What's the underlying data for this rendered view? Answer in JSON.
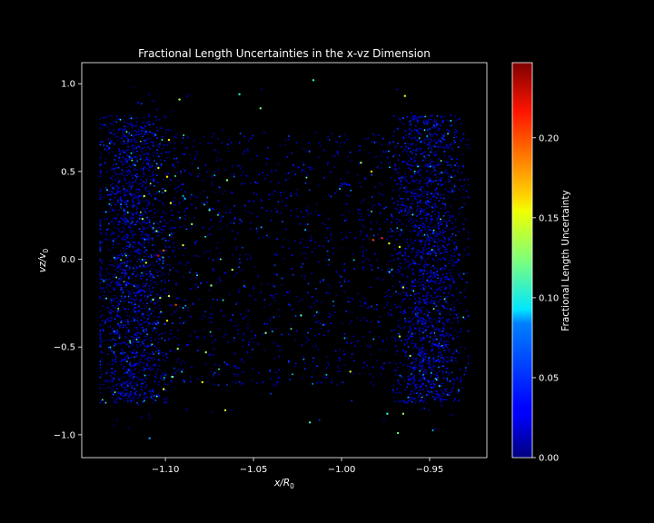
{
  "chart_data": {
    "type": "scatter",
    "title": "Fractional Length Uncertainties in the x-vz Dimension",
    "xlabel": "x/R",
    "xlabel_sub": "0",
    "ylabel": "vz/v",
    "ylabel_sub": "0",
    "xlim": [
      -1.1475,
      -0.9175
    ],
    "ylim": [
      -1.13,
      1.12
    ],
    "xticks": [
      -1.1,
      -1.05,
      -1.0,
      -0.95
    ],
    "xtick_labels": [
      "−1.10",
      "−1.05",
      "−1.00",
      "−0.95"
    ],
    "yticks": [
      1.0,
      0.5,
      0.0,
      -0.5,
      -1.0
    ],
    "ytick_labels": [
      "1.0",
      "0.5",
      "0.0",
      "−0.5",
      "−1.0"
    ],
    "background": "#000000",
    "colormap": "jet",
    "grid": false,
    "colorbar": {
      "label": "Fractional Length Uncertainty",
      "range": [
        0.0,
        0.247
      ],
      "ticks": [
        0.0,
        0.05,
        0.1,
        0.15,
        0.2
      ],
      "tick_labels": [
        "0.00",
        "0.05",
        "0.10",
        "0.15",
        "0.20"
      ]
    },
    "points_description": "about 5000 points spread over x in [-1.136, -0.928] and vz in [-1.02, 1.02], densest near x = -1.12 and x = -0.95, mostly low uncertainty (0.00-0.04) with sparse higher values up to about 0.24",
    "highlighted_points": [
      {
        "x": -1.016,
        "y": 1.02,
        "v": 0.1
      },
      {
        "x": -1.058,
        "y": 0.94,
        "v": 0.1
      },
      {
        "x": -1.092,
        "y": 0.91,
        "v": 0.13
      },
      {
        "x": -0.964,
        "y": 0.93,
        "v": 0.15
      },
      {
        "x": -1.046,
        "y": 0.86,
        "v": 0.12
      },
      {
        "x": -1.098,
        "y": 0.68,
        "v": 0.16
      },
      {
        "x": -0.989,
        "y": 0.55,
        "v": 0.13
      },
      {
        "x": -1.104,
        "y": 0.52,
        "v": 0.15
      },
      {
        "x": -0.983,
        "y": 0.5,
        "v": 0.16
      },
      {
        "x": -1.099,
        "y": 0.47,
        "v": 0.16
      },
      {
        "x": -1.065,
        "y": 0.45,
        "v": 0.12
      },
      {
        "x": -1.1,
        "y": 0.39,
        "v": 0.13
      },
      {
        "x": -1.112,
        "y": 0.36,
        "v": 0.14
      },
      {
        "x": -1.097,
        "y": 0.32,
        "v": 0.15
      },
      {
        "x": -1.075,
        "y": 0.28,
        "v": 0.11
      },
      {
        "x": -1.113,
        "y": 0.23,
        "v": 0.13
      },
      {
        "x": -1.085,
        "y": 0.2,
        "v": 0.12
      },
      {
        "x": -1.105,
        "y": 0.16,
        "v": 0.12
      },
      {
        "x": -0.977,
        "y": 0.12,
        "v": 0.21
      },
      {
        "x": -0.982,
        "y": 0.11,
        "v": 0.2
      },
      {
        "x": -0.973,
        "y": 0.09,
        "v": 0.14
      },
      {
        "x": -1.09,
        "y": 0.08,
        "v": 0.14
      },
      {
        "x": -0.967,
        "y": 0.07,
        "v": 0.15
      },
      {
        "x": -1.101,
        "y": 0.05,
        "v": 0.19
      },
      {
        "x": -1.104,
        "y": 0.02,
        "v": 0.22
      },
      {
        "x": -1.111,
        "y": -0.02,
        "v": 0.14
      },
      {
        "x": -1.062,
        "y": -0.06,
        "v": 0.13
      },
      {
        "x": -1.074,
        "y": -0.15,
        "v": 0.12
      },
      {
        "x": -0.965,
        "y": -0.16,
        "v": 0.14
      },
      {
        "x": -1.098,
        "y": -0.21,
        "v": 0.14
      },
      {
        "x": -1.103,
        "y": -0.22,
        "v": 0.13
      },
      {
        "x": -1.107,
        "y": -0.23,
        "v": 0.12
      },
      {
        "x": -1.094,
        "y": -0.26,
        "v": 0.2
      },
      {
        "x": -1.023,
        "y": -0.32,
        "v": 0.11
      },
      {
        "x": -1.099,
        "y": -0.35,
        "v": 0.16
      },
      {
        "x": -1.043,
        "y": -0.42,
        "v": 0.12
      },
      {
        "x": -0.967,
        "y": -0.44,
        "v": 0.13
      },
      {
        "x": -1.093,
        "y": -0.51,
        "v": 0.13
      },
      {
        "x": -1.077,
        "y": -0.53,
        "v": 0.13
      },
      {
        "x": -0.961,
        "y": -0.55,
        "v": 0.12
      },
      {
        "x": -0.995,
        "y": -0.64,
        "v": 0.14
      },
      {
        "x": -1.096,
        "y": -0.67,
        "v": 0.12
      },
      {
        "x": -1.079,
        "y": -0.7,
        "v": 0.15
      },
      {
        "x": -1.101,
        "y": -0.74,
        "v": 0.15
      },
      {
        "x": -1.066,
        "y": -0.86,
        "v": 0.14
      },
      {
        "x": -0.965,
        "y": -0.88,
        "v": 0.13
      },
      {
        "x": -0.974,
        "y": -0.88,
        "v": 0.1
      },
      {
        "x": -1.018,
        "y": -0.93,
        "v": 0.11
      },
      {
        "x": -0.968,
        "y": -0.99,
        "v": 0.12
      },
      {
        "x": -1.109,
        "y": -1.02,
        "v": 0.07
      }
    ]
  }
}
